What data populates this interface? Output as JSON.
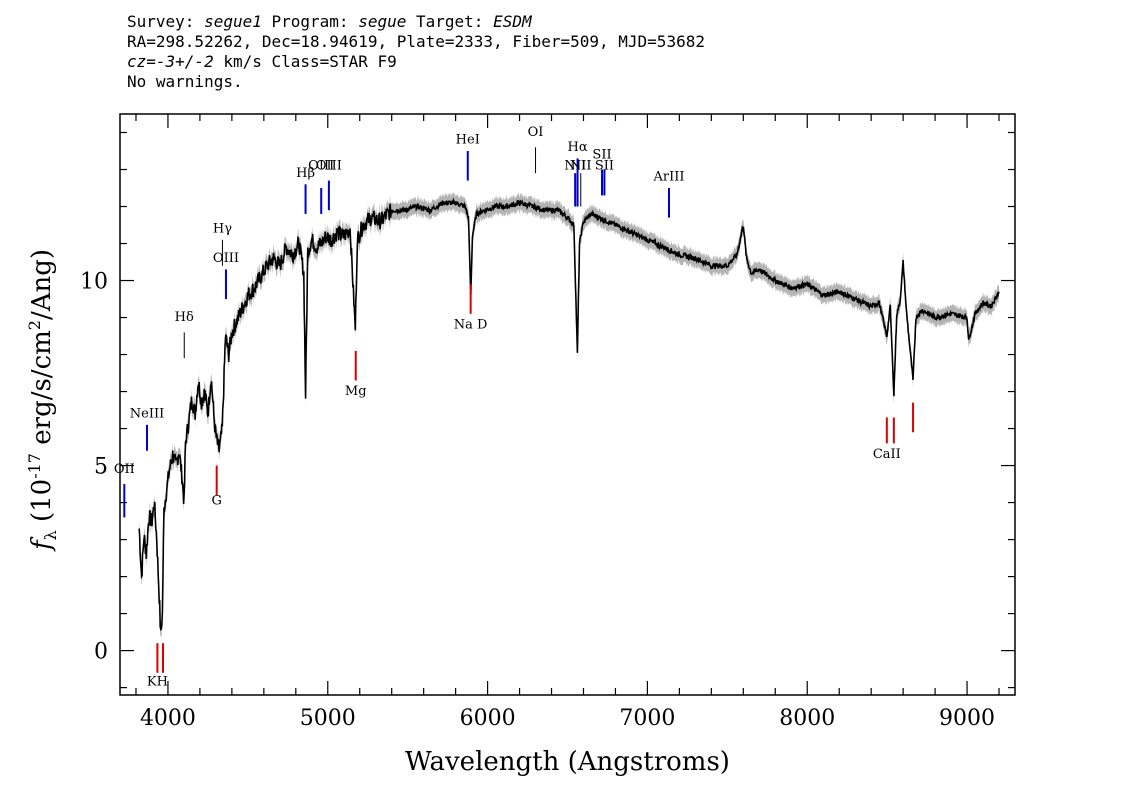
{
  "header": {
    "line1": {
      "survey_label": "Survey: ",
      "survey": "segue1",
      "program_label": " Program: ",
      "program": "segue",
      "target_label": " Target: ",
      "target": "ESDM"
    },
    "line2": "RA=298.52262, Dec=18.94619, Plate=2333, Fiber=509, MJD=53682",
    "line3": {
      "cz": "cz=-3+/-2",
      "cz_unit": " km/s Class=STAR F9"
    },
    "line4": "No warnings."
  },
  "chart_data": {
    "type": "line",
    "xlabel": "Wavelength (Angstroms)",
    "ylabel": "f_λ (10^-17 erg/s/cm^2/Ang)",
    "xlim": [
      3700,
      9300
    ],
    "ylim": [
      -1.2,
      14.5
    ],
    "x_ticks": [
      4000,
      5000,
      6000,
      7000,
      8000,
      9000
    ],
    "y_ticks": [
      0,
      5,
      10
    ],
    "grid": false,
    "colors": {
      "spectrum": "#000000",
      "error": "#b4b4b4",
      "emission": "#0000cc",
      "absorption": "#dd0000",
      "other": "#000000"
    },
    "series": [
      {
        "x": [
          3820,
          3835,
          3850,
          3865,
          3880,
          3900,
          3915,
          3930,
          3945,
          3955,
          3965,
          3975,
          3990,
          4010,
          4030,
          4050,
          4070,
          4090,
          4101,
          4110,
          4130,
          4150,
          4170,
          4190,
          4210,
          4230,
          4250,
          4270,
          4290,
          4300,
          4320,
          4340,
          4360,
          4380,
          4400,
          4430,
          4460,
          4500,
          4540,
          4580,
          4620,
          4660,
          4700,
          4740,
          4780,
          4820,
          4850,
          4861,
          4875,
          4900,
          4930,
          4960,
          4990,
          5020,
          5060,
          5100,
          5140,
          5172,
          5185,
          5220,
          5270,
          5330,
          5400,
          5480,
          5560,
          5640,
          5720,
          5800,
          5860,
          5880,
          5895,
          5905,
          5930,
          5980,
          6050,
          6120,
          6200,
          6280,
          6360,
          6440,
          6500,
          6540,
          6562,
          6575,
          6600,
          6650,
          6700,
          6800,
          6900,
          7000,
          7100,
          7200,
          7300,
          7400,
          7500,
          7560,
          7600,
          7620,
          7650,
          7700,
          7800,
          7900,
          8000,
          8100,
          8200,
          8300,
          8400,
          8450,
          8498,
          8520,
          8542,
          8560,
          8580,
          8600,
          8620,
          8662,
          8680,
          8720,
          8800,
          8900,
          9000,
          9010,
          9050,
          9100,
          9150,
          9200
        ],
        "y": [
          3.3,
          2.0,
          3.1,
          2.6,
          3.6,
          3.5,
          4.0,
          3.0,
          1.5,
          0.4,
          1.0,
          3.8,
          4.3,
          4.9,
          5.3,
          5.0,
          5.4,
          4.6,
          4.0,
          5.6,
          6.2,
          6.8,
          6.4,
          7.3,
          6.7,
          7.0,
          6.4,
          7.4,
          6.2,
          5.8,
          5.4,
          6.0,
          8.5,
          8.0,
          8.6,
          8.9,
          9.2,
          9.6,
          9.8,
          10.1,
          10.4,
          10.6,
          10.4,
          10.9,
          10.7,
          11.0,
          10.2,
          6.9,
          10.8,
          11.1,
          10.9,
          11.0,
          11.2,
          11.1,
          11.3,
          11.2,
          11.4,
          8.7,
          11.1,
          11.5,
          11.7,
          11.6,
          11.9,
          11.9,
          12.0,
          11.9,
          12.1,
          12.1,
          12.0,
          11.7,
          9.6,
          11.2,
          11.8,
          11.9,
          12.0,
          12.0,
          12.1,
          12.0,
          11.9,
          11.9,
          11.7,
          11.5,
          8.0,
          11.0,
          11.6,
          11.8,
          11.7,
          11.5,
          11.3,
          11.1,
          10.9,
          10.7,
          10.6,
          10.4,
          10.4,
          10.7,
          11.5,
          10.6,
          10.2,
          10.3,
          10.0,
          9.8,
          9.9,
          9.6,
          9.7,
          9.5,
          9.3,
          9.4,
          8.5,
          9.3,
          6.9,
          9.1,
          9.4,
          10.5,
          9.2,
          7.3,
          9.0,
          9.2,
          9.0,
          9.1,
          9.0,
          8.4,
          9.1,
          9.4,
          9.3,
          9.7
        ]
      }
    ],
    "line_markers": [
      {
        "label": "OII",
        "wl": 3727,
        "y1": 3.6,
        "y2": 4.5,
        "label_y": 4.8,
        "kind": "emission"
      },
      {
        "label": "NeIII",
        "wl": 3869,
        "y1": 5.4,
        "y2": 6.1,
        "label_y": 6.3,
        "kind": "emission"
      },
      {
        "label": "Hδ",
        "wl": 4102,
        "y1": 7.9,
        "y2": 8.6,
        "label_y": 8.9,
        "kind": "other"
      },
      {
        "label": "Hγ",
        "wl": 4341,
        "y1": 10.4,
        "y2": 11.1,
        "label_y": 11.3,
        "kind": "other"
      },
      {
        "label": "OIII",
        "wl": 4363,
        "y1": 9.5,
        "y2": 10.3,
        "label_y": 10.5,
        "kind": "emission"
      },
      {
        "label": "Hβ",
        "wl": 4861,
        "y1": 11.8,
        "y2": 12.6,
        "label_y": 12.8,
        "kind": "emission"
      },
      {
        "label": "OIII",
        "wl": 4959,
        "y1": 11.8,
        "y2": 12.5,
        "label_y": 13.0,
        "kind": "emission"
      },
      {
        "label": "OIII",
        "wl": 5007,
        "y1": 11.9,
        "y2": 12.7,
        "label_y": 13.0,
        "kind": "emission"
      },
      {
        "label": "HeI",
        "wl": 5876,
        "y1": 12.7,
        "y2": 13.5,
        "label_y": 13.7,
        "kind": "emission"
      },
      {
        "label": "OI",
        "wl": 6300,
        "y1": 12.9,
        "y2": 13.6,
        "label_y": 13.9,
        "kind": "other"
      },
      {
        "label": "NII",
        "wl": 6548,
        "y1": 12.0,
        "y2": 12.9,
        "label_y": 13.0,
        "kind": "emission"
      },
      {
        "label": "Hα",
        "wl": 6563,
        "y1": 12.0,
        "y2": 13.3,
        "label_y": 13.5,
        "kind": "emission"
      },
      {
        "label": "NII",
        "wl": 6583,
        "y1": 12.0,
        "y2": 12.9,
        "label_y": 13.0,
        "kind": "other"
      },
      {
        "label": "SII",
        "wl": 6716,
        "y1": 12.3,
        "y2": 13.0,
        "label_y": 13.3,
        "kind": "emission"
      },
      {
        "label": "SII",
        "wl": 6731,
        "y1": 12.3,
        "y2": 13.0,
        "label_y": 13.0,
        "kind": "emission"
      },
      {
        "label": "ArIII",
        "wl": 7135,
        "y1": 11.7,
        "y2": 12.5,
        "label_y": 12.7,
        "kind": "emission"
      },
      {
        "label": "KH",
        "wl": 3934,
        "y1": -0.6,
        "y2": 0.2,
        "label_y": -0.95,
        "kind": "absorption"
      },
      {
        "label": "",
        "wl": 3969,
        "y1": -0.6,
        "y2": 0.2,
        "label_y": null,
        "kind": "absorption"
      },
      {
        "label": "G",
        "wl": 4305,
        "y1": 4.2,
        "y2": 5.0,
        "label_y": 3.95,
        "kind": "absorption"
      },
      {
        "label": "Mg",
        "wl": 5175,
        "y1": 7.3,
        "y2": 8.1,
        "label_y": 6.9,
        "kind": "absorption"
      },
      {
        "label": "Na  D",
        "wl": 5894,
        "y1": 9.1,
        "y2": 9.9,
        "label_y": 8.7,
        "kind": "absorption"
      },
      {
        "label": "CaII",
        "wl": 8498,
        "y1": 5.6,
        "y2": 6.3,
        "label_y": 5.2,
        "kind": "absorption"
      },
      {
        "label": "",
        "wl": 8542,
        "y1": 5.6,
        "y2": 6.3,
        "label_y": null,
        "kind": "absorption"
      },
      {
        "label": "",
        "wl": 8662,
        "y1": 5.9,
        "y2": 6.7,
        "label_y": null,
        "kind": "absorption"
      }
    ]
  }
}
